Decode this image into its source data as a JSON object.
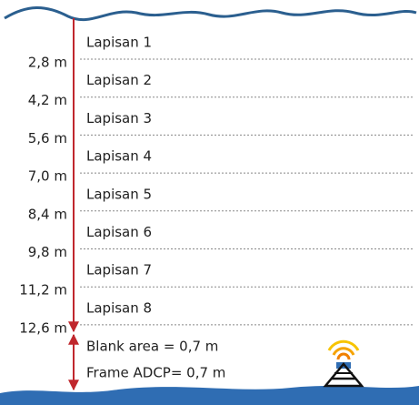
{
  "layers": [
    {
      "label": "Lapisan 1",
      "depth": "2,8 m"
    },
    {
      "label": "Lapisan 2",
      "depth": "4,2 m"
    },
    {
      "label": "Lapisan 3",
      "depth": "5,6 m"
    },
    {
      "label": "Lapisan 4",
      "depth": "7,0 m"
    },
    {
      "label": "Lapisan 5",
      "depth": "8,4 m"
    },
    {
      "label": "Lapisan 6",
      "depth": "9,8 m"
    },
    {
      "label": "Lapisan 7",
      "depth": "11,2 m"
    },
    {
      "label": "Lapisan 8",
      "depth": "12,6 m"
    }
  ],
  "blank_area": "Blank area = 0,7 m",
  "frame": "Frame ADCP= 0,7 m"
}
